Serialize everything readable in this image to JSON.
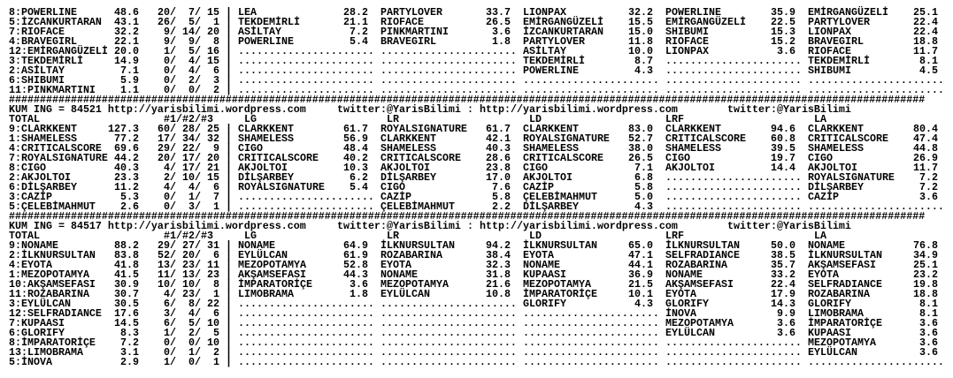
{
  "rule": "####################################################################################################################################################",
  "slash": "/",
  "pipe": "|",
  "empty_cell": "......................",
  "col_labels": {
    "total": "TOTAL",
    "places": "#1/#2/#3",
    "groups": [
      "LG",
      "LR",
      "LD",
      "LRF",
      "LA"
    ]
  },
  "blocks": [
    {
      "header": null,
      "rows": [
        {
          "team": "8:POWERLINE",
          "total": "48.6",
          "p": [
            "20",
            "7",
            "15"
          ],
          "cols": [
            [
              "LEA",
              "28.2"
            ],
            [
              "PARTYLOVER",
              "33.7"
            ],
            [
              "LIONPAX",
              "32.2"
            ],
            [
              "POWERLINE",
              "35.9"
            ],
            [
              "EMİRGANGÜZELİ",
              "25.1"
            ]
          ]
        },
        {
          "team": "5:İZCANKURTARAN",
          "total": "43.1",
          "p": [
            "26",
            "5",
            "1"
          ],
          "cols": [
            [
              "TEKDEMİRLİ",
              "21.1"
            ],
            [
              "RIOFACE",
              "26.5"
            ],
            [
              "EMİRGANGÜZELİ",
              "15.5"
            ],
            [
              "EMİRGANGÜZELİ",
              "22.5"
            ],
            [
              "PARTYLOVER",
              "22.4"
            ]
          ]
        },
        {
          "team": "7:RIOFACE",
          "total": "32.2",
          "p": [
            "9",
            "14",
            "20"
          ],
          "cols": [
            [
              "ASİLTAY",
              "7.2"
            ],
            [
              "PINKMARTINI",
              "3.6"
            ],
            [
              "İZCANKURTARAN",
              "15.0"
            ],
            [
              "SHIBUMI",
              "15.3"
            ],
            [
              "LIONPAX",
              "22.4"
            ]
          ]
        },
        {
          "team": "4:BRAVEGIRL",
          "total": "22.1",
          "p": [
            "9",
            "9",
            "8"
          ],
          "cols": [
            [
              "POWERLINE",
              "5.4"
            ],
            [
              "BRAVEGIRL",
              "1.8"
            ],
            [
              "PARTYLOVER",
              "11.8"
            ],
            [
              "RIOFACE",
              "15.2"
            ],
            [
              "BRAVEGIRL",
              "18.8"
            ]
          ]
        },
        {
          "team": "12:EMİRGANGÜZELİ",
          "total": "20.0",
          "p": [
            "1",
            "5",
            "16"
          ],
          "cols": [
            null,
            null,
            [
              "ASİLTAY",
              "10.0"
            ],
            [
              "LIONPAX",
              "3.6"
            ],
            [
              "RIOFACE",
              "11.7"
            ]
          ]
        },
        {
          "team": "3:TEKDEMİRLİ",
          "total": "14.9",
          "p": [
            "0",
            "4",
            "15"
          ],
          "cols": [
            null,
            null,
            [
              "TEKDEMİRLİ",
              "8.7"
            ],
            null,
            [
              "TEKDEMİRLİ",
              "8.1"
            ]
          ]
        },
        {
          "team": "2:ASİLTAY",
          "total": "7.1",
          "p": [
            "0",
            "4",
            "6"
          ],
          "cols": [
            null,
            null,
            [
              "POWERLINE",
              "4.3"
            ],
            null,
            [
              "SHIBUMI",
              "4.5"
            ]
          ]
        },
        {
          "team": "6:SHIBUMI",
          "total": "5.9",
          "p": [
            "0",
            "2",
            "3"
          ],
          "cols": [
            null,
            null,
            null,
            null,
            null
          ]
        },
        {
          "team": "11:PINKMARTINI",
          "total": "1.1",
          "p": [
            "0",
            "0",
            "2"
          ],
          "cols": [
            null,
            null,
            null,
            null,
            null
          ]
        }
      ]
    },
    {
      "header": {
        "kum": "KUM ING = 84521 http://yarisbilimi.wordpress.com",
        "twitter": "twitter:@YarisBilimi",
        "sep": ":",
        "url": "http://yarisbilimi.wordpress.com",
        "twitter2": "twitter:@YarisBilimi"
      },
      "rows": [
        {
          "team": "9:CLARKKENT",
          "total": "127.3",
          "p": [
            "60",
            "28",
            "25"
          ],
          "cols": [
            [
              "CLARKKENT",
              "61.7"
            ],
            [
              "ROYALSIGNATURE",
              "61.7"
            ],
            [
              "CLARKKENT",
              "83.0"
            ],
            [
              "CLARKKENT",
              "94.6"
            ],
            [
              "CLARKKENT",
              "80.4"
            ]
          ]
        },
        {
          "team": "1:SHAMELESS",
          "total": "77.2",
          "p": [
            "17",
            "34",
            "32"
          ],
          "cols": [
            [
              "SHAMELESS",
              "56.9"
            ],
            [
              "CLARKKENT",
              "42.1"
            ],
            [
              "ROYALSIGNATURE",
              "52.7"
            ],
            [
              "CRITICALSCORE",
              "60.8"
            ],
            [
              "CRITICALSCORE",
              "47.4"
            ]
          ]
        },
        {
          "team": "4:CRITICALSCORE",
          "total": "69.6",
          "p": [
            "29",
            "22",
            "9"
          ],
          "cols": [
            [
              "CIGO",
              "48.4"
            ],
            [
              "SHAMELESS",
              "40.3"
            ],
            [
              "SHAMELESS",
              "38.0"
            ],
            [
              "SHAMELESS",
              "39.5"
            ],
            [
              "SHAMELESS",
              "44.8"
            ]
          ]
        },
        {
          "team": "7:ROYALSIGNATURE",
          "total": "44.2",
          "p": [
            "20",
            "17",
            "20"
          ],
          "cols": [
            [
              "CRITICALSCORE",
              "40.2"
            ],
            [
              "CRITICALSCORE",
              "28.6"
            ],
            [
              "CRITICALSCORE",
              "26.5"
            ],
            [
              "CIGO",
              "19.7"
            ],
            [
              "CIGO",
              "26.9"
            ]
          ]
        },
        {
          "team": "8:CIGO",
          "total": "40.3",
          "p": [
            "4",
            "17",
            "21"
          ],
          "cols": [
            [
              "AKJOLTOI",
              "10.3"
            ],
            [
              "AKJOLTOI",
              "23.8"
            ],
            [
              "CIGO",
              "7.1"
            ],
            [
              "AKJOLTOI",
              "14.4"
            ],
            [
              "AKJOLTOI",
              "11.7"
            ]
          ]
        },
        {
          "team": "2:AKJOLTOI",
          "total": "23.3",
          "p": [
            "2",
            "10",
            "15"
          ],
          "cols": [
            [
              "DİLŞARBEY",
              "6.2"
            ],
            [
              "DİLŞARBEY",
              "17.0"
            ],
            [
              "AKJOLTOI",
              "6.8"
            ],
            null,
            [
              "ROYALSIGNATURE",
              "7.2"
            ]
          ]
        },
        {
          "team": "6:DİLŞARBEY",
          "total": "11.2",
          "p": [
            "4",
            "4",
            "6"
          ],
          "cols": [
            [
              "ROYALSIGNATURE",
              "5.4"
            ],
            [
              "CIGO",
              "7.6"
            ],
            [
              "CAZİP",
              "5.8"
            ],
            null,
            [
              "DİLŞARBEY",
              "7.2"
            ]
          ]
        },
        {
          "team": "3:CAZİP",
          "total": "5.3",
          "p": [
            "0",
            "1",
            "7"
          ],
          "cols": [
            null,
            [
              "CAZİP",
              "5.8"
            ],
            [
              "ÇELEBİMAHMUT",
              "5.0"
            ],
            null,
            [
              "CAZİP",
              "3.6"
            ]
          ]
        },
        {
          "team": "5:ÇELEBİMAHMUT",
          "total": "2.6",
          "p": [
            "0",
            "3",
            "1"
          ],
          "cols": [
            null,
            [
              "ÇELEBİMAHMUT",
              "2.2"
            ],
            [
              "DİLŞARBEY",
              "4.3"
            ],
            null,
            null
          ]
        }
      ]
    },
    {
      "header": {
        "kum": "KUM ING = 84517 http://yarisbilimi.wordpress.com",
        "twitter": "twitter:@YarisBilimi",
        "sep": ":",
        "url": "http://yarisbilimi.wordpress.com",
        "twitter2": "twitter:@YarisBilimi"
      },
      "rows": [
        {
          "team": "9:NONAME",
          "total": "88.2",
          "p": [
            "29",
            "27",
            "31"
          ],
          "cols": [
            [
              "NONAME",
              "64.9"
            ],
            [
              "İLKNURSULTAN",
              "94.2"
            ],
            [
              "İLKNURSULTAN",
              "65.0"
            ],
            [
              "İLKNURSULTAN",
              "50.0"
            ],
            [
              "NONAME",
              "76.8"
            ]
          ]
        },
        {
          "team": "2:İLKNURSULTAN",
          "total": "83.8",
          "p": [
            "52",
            "20",
            "6"
          ],
          "cols": [
            [
              "EYLÜLCAN",
              "61.9"
            ],
            [
              "ROZABARINA",
              "38.4"
            ],
            [
              "EYOTA",
              "47.1"
            ],
            [
              "SELFRADIANCE",
              "38.5"
            ],
            [
              "İLKNURSULTAN",
              "34.9"
            ]
          ]
        },
        {
          "team": "4:EYOTA",
          "total": "41.8",
          "p": [
            "13",
            "23",
            "11"
          ],
          "cols": [
            [
              "MEZOPOTAMYA",
              "52.8"
            ],
            [
              "EYOTA",
              "32.3"
            ],
            [
              "NONAME",
              "44.1"
            ],
            [
              "ROZABARINA",
              "35.7"
            ],
            [
              "AKŞAMSEFASI",
              "25.1"
            ]
          ]
        },
        {
          "team": "1:MEZOPOTAMYA",
          "total": "41.5",
          "p": [
            "11",
            "13",
            "23"
          ],
          "cols": [
            [
              "AKŞAMSEFASI",
              "44.3"
            ],
            [
              "NONAME",
              "31.8"
            ],
            [
              "KUPAASI",
              "36.9"
            ],
            [
              "NONAME",
              "33.2"
            ],
            [
              "EYOTA",
              "23.2"
            ]
          ]
        },
        {
          "team": "10:AKŞAMSEFASI",
          "total": "30.9",
          "p": [
            "10",
            "10",
            "8"
          ],
          "cols": [
            [
              "İMPARATORİÇE",
              "3.6"
            ],
            [
              "MEZOPOTAMYA",
              "21.6"
            ],
            [
              "MEZOPOTAMYA",
              "21.5"
            ],
            [
              "AKŞAMSEFASI",
              "22.4"
            ],
            [
              "SELFRADIANCE",
              "19.8"
            ]
          ]
        },
        {
          "team": "11:ROZABARINA",
          "total": "30.7",
          "p": [
            "4",
            "23",
            "1"
          ],
          "cols": [
            [
              "LIMOBRAMA",
              "1.8"
            ],
            [
              "EYLÜLCAN",
              "10.8"
            ],
            [
              "İMPARATORİÇE",
              "10.1"
            ],
            [
              "EYOTA",
              "17.9"
            ],
            [
              "ROZABARINA",
              "18.8"
            ]
          ]
        },
        {
          "team": "3:EYLÜLCAN",
          "total": "30.5",
          "p": [
            "6",
            "8",
            "22"
          ],
          "cols": [
            null,
            null,
            [
              "GLORIFY",
              "4.3"
            ],
            [
              "GLORIFY",
              "14.3"
            ],
            [
              "GLORIFY",
              "8.1"
            ]
          ]
        },
        {
          "team": "12:SELFRADIANCE",
          "total": "17.6",
          "p": [
            "3",
            "4",
            "6"
          ],
          "cols": [
            null,
            null,
            null,
            [
              "İNOVA",
              "9.9"
            ],
            [
              "LIMOBRAMA",
              "8.1"
            ]
          ]
        },
        {
          "team": "7:KUPAASI",
          "total": "14.5",
          "p": [
            "6",
            "5",
            "10"
          ],
          "cols": [
            null,
            null,
            null,
            [
              "MEZOPOTAMYA",
              "3.6"
            ],
            [
              "İMPARATORİÇE",
              "3.6"
            ]
          ]
        },
        {
          "team": "6:GLORIFY",
          "total": "8.3",
          "p": [
            "1",
            "2",
            "5"
          ],
          "cols": [
            null,
            null,
            null,
            [
              "EYLÜLCAN",
              "3.6"
            ],
            [
              "KUPAASI",
              "3.6"
            ]
          ]
        },
        {
          "team": "8:İMPARATORİÇE",
          "total": "7.2",
          "p": [
            "0",
            "0",
            "10"
          ],
          "cols": [
            null,
            null,
            null,
            null,
            [
              "MEZOPOTAMYA",
              "3.6"
            ]
          ]
        },
        {
          "team": "13:LIMOBRAMA",
          "total": "3.1",
          "p": [
            "0",
            "1",
            "2"
          ],
          "cols": [
            null,
            null,
            null,
            null,
            [
              "EYLÜLCAN",
              "3.6"
            ]
          ]
        },
        {
          "team": "5:İNOVA",
          "total": "2.9",
          "p": [
            "1",
            "0",
            "1"
          ],
          "cols": [
            null,
            null,
            null,
            null,
            null
          ]
        }
      ]
    }
  ]
}
